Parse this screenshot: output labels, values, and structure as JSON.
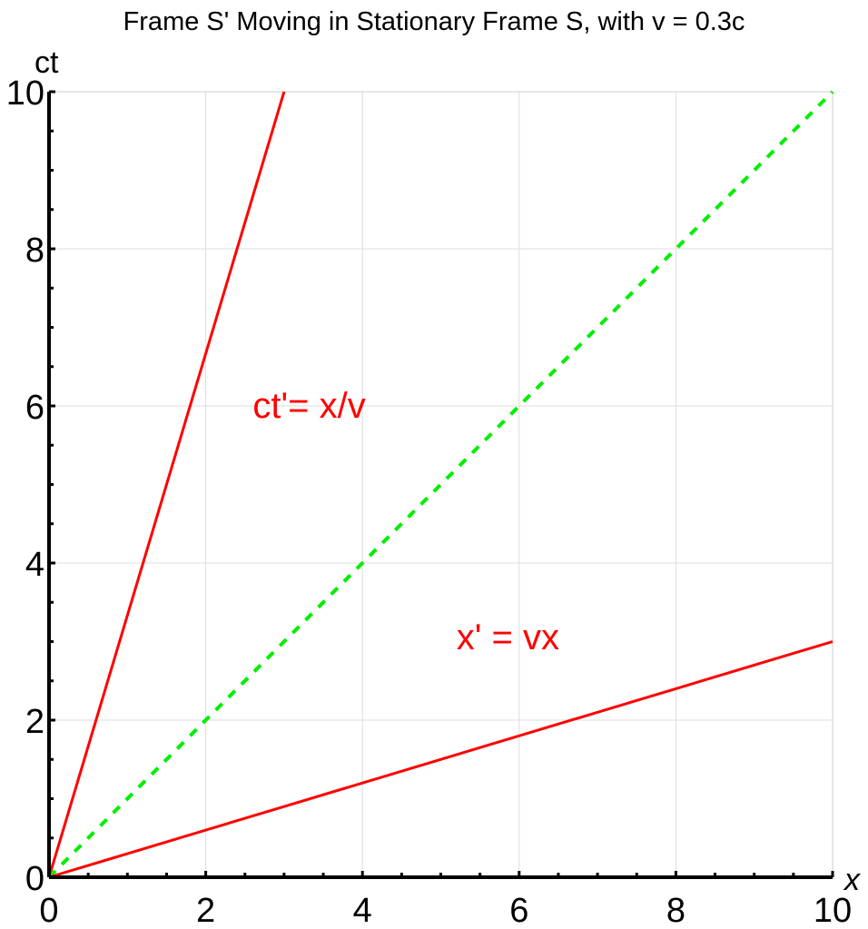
{
  "chart_data": {
    "type": "line",
    "title": "Frame S' Moving in Stationary Frame S, with v = 0.3c",
    "xlabel": "x",
    "ylabel": "ct",
    "xlim": [
      0,
      10
    ],
    "ylim": [
      0,
      10
    ],
    "x_ticks": [
      0,
      2,
      4,
      6,
      8,
      10
    ],
    "y_ticks": [
      0,
      2,
      4,
      6,
      8,
      10
    ],
    "minor_tick_step": 0.5,
    "grid": true,
    "legend": null,
    "series": [
      {
        "name": "ct' axis (ct = x/v)",
        "x": [
          0,
          3
        ],
        "y": [
          0,
          10
        ],
        "color": "#ff0000",
        "style": "solid"
      },
      {
        "name": "light line (ct = x)",
        "x": [
          0,
          10
        ],
        "y": [
          0,
          10
        ],
        "color": "#00ee00",
        "style": "dashed"
      },
      {
        "name": "x' axis (ct = v x)",
        "x": [
          0,
          10
        ],
        "y": [
          0,
          3
        ],
        "color": "#ff0000",
        "style": "solid"
      }
    ],
    "annotations": [
      {
        "text": "ct'= x/v",
        "x": 2.6,
        "y": 5.85,
        "color": "#ff0000"
      },
      {
        "text": "x' = vx",
        "x": 5.2,
        "y": 2.9,
        "color": "#ff0000"
      }
    ],
    "parameters": {
      "v": "0.3c"
    }
  },
  "colors": {
    "axis": "#000000",
    "grid": "#dddddd",
    "frame": "#dddddd",
    "red_line": "#ff0000",
    "green_line": "#00ee00"
  }
}
